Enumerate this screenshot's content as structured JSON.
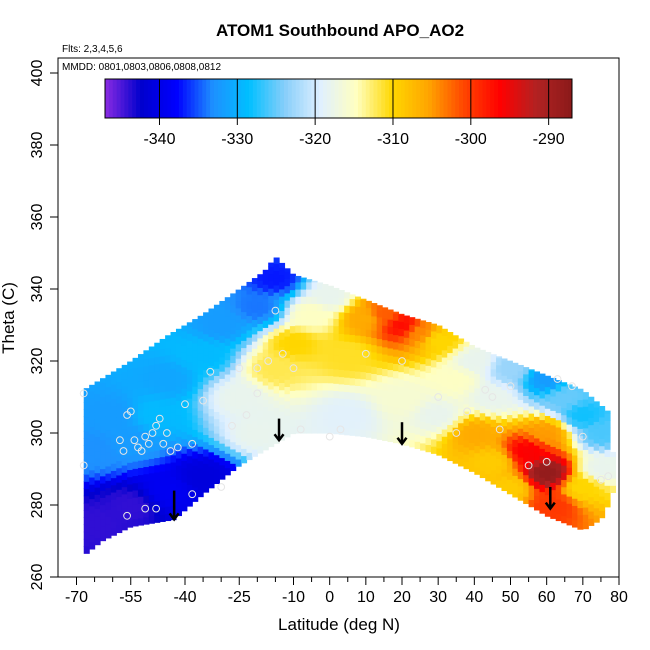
{
  "chart_data": {
    "type": "heatmap",
    "title": "ATOM1 Southbound APO_AO2",
    "annotations": {
      "flights": "Flts: 2,3,4,5,6",
      "dates": "MMDD: 0801,0803,0806,0808,0812"
    },
    "xlabel": "Latitude (deg N)",
    "ylabel": "Theta (C)",
    "xlim": [
      -70,
      80
    ],
    "ylim": [
      260,
      400
    ],
    "x_ticks": [
      -70,
      -55,
      -40,
      -25,
      -10,
      0,
      10,
      20,
      30,
      40,
      50,
      60,
      70,
      80
    ],
    "x_tick_labels": [
      "-70",
      "-55",
      "-40",
      "-25",
      "-10",
      "0",
      "10",
      "20",
      "30",
      "40",
      "50",
      "60",
      "70",
      "80"
    ],
    "x_minor_ticks": [
      -65,
      -60,
      -50,
      -45,
      -35,
      -30,
      -20,
      -15,
      -5,
      5,
      15,
      25,
      35,
      45,
      55,
      65,
      75
    ],
    "y_ticks": [
      260,
      280,
      300,
      320,
      340,
      360,
      380,
      400
    ],
    "y_tick_labels": [
      "260",
      "280",
      "300",
      "320",
      "340",
      "360",
      "380",
      "400"
    ],
    "colorbar": {
      "range": [
        -347,
        -287
      ],
      "ticks": [
        -340,
        -330,
        -320,
        -310,
        -300,
        -290
      ],
      "tick_labels": [
        "-340",
        "-330",
        "-320",
        "-310",
        "-300",
        "-290"
      ],
      "colors": [
        "#8a2be2",
        "#0000cd",
        "#0000ff",
        "#1e90ff",
        "#00bfff",
        "#87cefa",
        "#e0f0ff",
        "#ffffc0",
        "#ffd700",
        "#ffa500",
        "#ff4500",
        "#ff0000",
        "#b22222",
        "#8b1a1a"
      ]
    },
    "domain_top": [
      [
        -68,
        312
      ],
      [
        -55,
        320
      ],
      [
        -45,
        327
      ],
      [
        -35,
        333
      ],
      [
        -25,
        340
      ],
      [
        -18,
        345
      ],
      [
        -15,
        349
      ],
      [
        -10,
        344
      ],
      [
        0,
        341
      ],
      [
        10,
        337
      ],
      [
        20,
        333
      ],
      [
        30,
        330
      ],
      [
        40,
        324
      ],
      [
        50,
        320
      ],
      [
        60,
        316
      ],
      [
        70,
        312
      ],
      [
        77,
        306
      ],
      [
        79,
        288
      ]
    ],
    "domain_bottom": [
      [
        79,
        288
      ],
      [
        78,
        282
      ],
      [
        75,
        276
      ],
      [
        70,
        273
      ],
      [
        60,
        277
      ],
      [
        50,
        283
      ],
      [
        40,
        289
      ],
      [
        30,
        294
      ],
      [
        20,
        297
      ],
      [
        10,
        299
      ],
      [
        0,
        300
      ],
      [
        -10,
        300
      ],
      [
        -15,
        297
      ],
      [
        -25,
        291
      ],
      [
        -35,
        283
      ],
      [
        -43,
        276
      ],
      [
        -55,
        274
      ],
      [
        -63,
        270
      ],
      [
        -68,
        266
      ]
    ],
    "anchors": [
      {
        "lat": -65,
        "theta": 275,
        "value": -344
      },
      {
        "lat": -55,
        "theta": 280,
        "value": -344
      },
      {
        "lat": -45,
        "theta": 284,
        "value": -339
      },
      {
        "lat": -35,
        "theta": 288,
        "value": -341
      },
      {
        "lat": -65,
        "theta": 295,
        "value": -333
      },
      {
        "lat": -60,
        "theta": 305,
        "value": -332
      },
      {
        "lat": -55,
        "theta": 298,
        "value": -332
      },
      {
        "lat": -48,
        "theta": 305,
        "value": -329
      },
      {
        "lat": -45,
        "theta": 315,
        "value": -331
      },
      {
        "lat": -35,
        "theta": 322,
        "value": -329
      },
      {
        "lat": -30,
        "theta": 330,
        "value": -332
      },
      {
        "lat": -20,
        "theta": 335,
        "value": -334
      },
      {
        "lat": -15,
        "theta": 343,
        "value": -337
      },
      {
        "lat": -25,
        "theta": 310,
        "value": -318
      },
      {
        "lat": -20,
        "theta": 300,
        "value": -318
      },
      {
        "lat": -15,
        "theta": 318,
        "value": -312
      },
      {
        "lat": -10,
        "theta": 325,
        "value": -310
      },
      {
        "lat": -5,
        "theta": 333,
        "value": -315
      },
      {
        "lat": 0,
        "theta": 338,
        "value": -318
      },
      {
        "lat": 5,
        "theta": 322,
        "value": -311
      },
      {
        "lat": 5,
        "theta": 305,
        "value": -319
      },
      {
        "lat": 10,
        "theta": 332,
        "value": -306
      },
      {
        "lat": 15,
        "theta": 333,
        "value": -302
      },
      {
        "lat": 20,
        "theta": 330,
        "value": -297
      },
      {
        "lat": 25,
        "theta": 328,
        "value": -304
      },
      {
        "lat": 30,
        "theta": 326,
        "value": -310
      },
      {
        "lat": 20,
        "theta": 310,
        "value": -316
      },
      {
        "lat": 30,
        "theta": 305,
        "value": -318
      },
      {
        "lat": 35,
        "theta": 315,
        "value": -315
      },
      {
        "lat": 40,
        "theta": 300,
        "value": -306
      },
      {
        "lat": 40,
        "theta": 320,
        "value": -318
      },
      {
        "lat": 45,
        "theta": 310,
        "value": -318
      },
      {
        "lat": 50,
        "theta": 318,
        "value": -323
      },
      {
        "lat": 55,
        "theta": 295,
        "value": -296
      },
      {
        "lat": 60,
        "theta": 289,
        "value": -288
      },
      {
        "lat": 60,
        "theta": 300,
        "value": -305
      },
      {
        "lat": 62,
        "theta": 280,
        "value": -300
      },
      {
        "lat": 50,
        "theta": 285,
        "value": -309
      },
      {
        "lat": 45,
        "theta": 292,
        "value": -309
      },
      {
        "lat": 70,
        "theta": 285,
        "value": -310
      },
      {
        "lat": 65,
        "theta": 310,
        "value": -325
      },
      {
        "lat": 70,
        "theta": 305,
        "value": -328
      },
      {
        "lat": 75,
        "theta": 300,
        "value": -326
      },
      {
        "lat": 60,
        "theta": 315,
        "value": -332
      },
      {
        "lat": 75,
        "theta": 290,
        "value": -318
      }
    ],
    "observations": [
      [
        -68,
        311
      ],
      [
        -68,
        291
      ],
      [
        -58,
        298
      ],
      [
        -57,
        295
      ],
      [
        -56,
        305
      ],
      [
        -55,
        306
      ],
      [
        -54,
        298
      ],
      [
        -53,
        296
      ],
      [
        -52,
        295
      ],
      [
        -51,
        299
      ],
      [
        -50,
        297
      ],
      [
        -49,
        300
      ],
      [
        -48,
        302
      ],
      [
        -47,
        304
      ],
      [
        -46,
        297
      ],
      [
        -45,
        300
      ],
      [
        -44,
        295
      ],
      [
        -42,
        296
      ],
      [
        -40,
        308
      ],
      [
        -38,
        297
      ],
      [
        -35,
        309
      ],
      [
        -33,
        317
      ],
      [
        -27,
        302
      ],
      [
        -25,
        318
      ],
      [
        -23,
        305
      ],
      [
        -20,
        311
      ],
      [
        -17,
        320
      ],
      [
        -13,
        322
      ],
      [
        -10,
        318
      ],
      [
        -8,
        301
      ],
      [
        0,
        299
      ],
      [
        3,
        301
      ],
      [
        10,
        322
      ],
      [
        20,
        320
      ],
      [
        30,
        310
      ],
      [
        35,
        300
      ],
      [
        38,
        306
      ],
      [
        43,
        312
      ],
      [
        45,
        310
      ],
      [
        47,
        301
      ],
      [
        50,
        313
      ],
      [
        55,
        291
      ],
      [
        63,
        315
      ],
      [
        67,
        313
      ],
      [
        70,
        299
      ],
      [
        75,
        287
      ],
      [
        77,
        288
      ],
      [
        -56,
        277
      ],
      [
        -51,
        279
      ],
      [
        -48,
        279
      ],
      [
        -38,
        283
      ],
      [
        -30,
        285
      ],
      [
        -20,
        318
      ],
      [
        -15,
        334
      ],
      [
        60,
        292
      ]
    ],
    "arrows": [
      {
        "lat": -43,
        "theta_top": 284,
        "theta_tip": 276
      },
      {
        "lat": -14,
        "theta_top": 304,
        "theta_tip": 298
      },
      {
        "lat": 20,
        "theta_top": 303,
        "theta_tip": 297
      },
      {
        "lat": 61,
        "theta_top": 285,
        "theta_tip": 279
      }
    ]
  }
}
